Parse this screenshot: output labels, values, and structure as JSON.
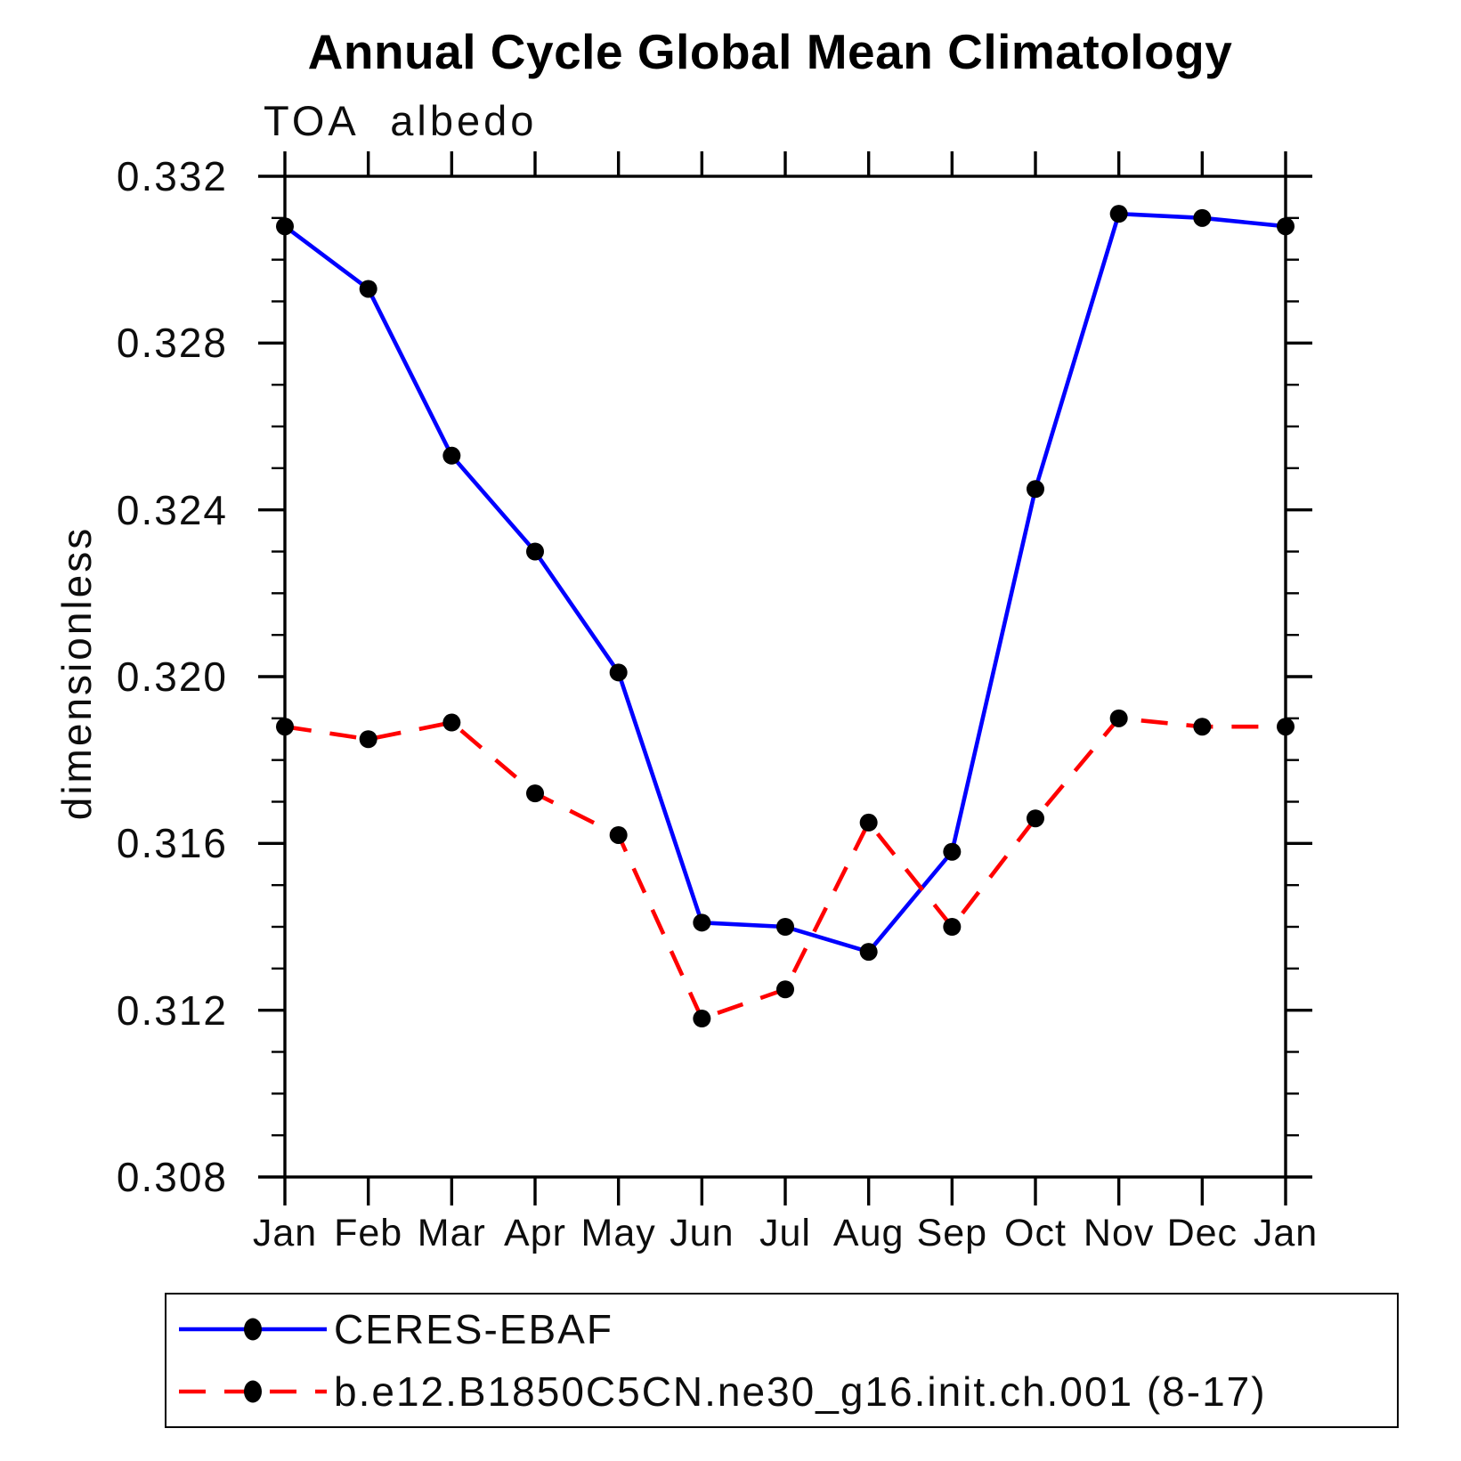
{
  "chart_data": {
    "type": "line",
    "title": "Annual Cycle Global Mean Climatology",
    "subtitle": "TOA albedo",
    "ylabel": "dimensionless",
    "categories": [
      "Jan",
      "Feb",
      "Mar",
      "Apr",
      "May",
      "Jun",
      "Jul",
      "Aug",
      "Sep",
      "Oct",
      "Nov",
      "Dec",
      "Jan"
    ],
    "xtick_labels": [
      "Jan",
      "Feb",
      "Mar",
      "Apr",
      "May",
      "Jun",
      "Jul",
      "Aug",
      "Sep",
      "Oct",
      "Nov",
      "Dec",
      "Jan"
    ],
    "ytick_labels": [
      "0.308",
      "0.312",
      "0.316",
      "0.320",
      "0.324",
      "0.328",
      "0.332"
    ],
    "ylim": [
      0.308,
      0.332
    ],
    "ytick_major_step": 0.004,
    "ytick_minor_step": 0.001,
    "grid": false,
    "legend_position": "bottom-left-box",
    "axis_color": "#000000",
    "marker_color": "#000000",
    "series": [
      {
        "name": "CERES-EBAF",
        "color": "#0000ff",
        "style": "solid",
        "marker": "filled-circle",
        "values": [
          0.3308,
          0.3293,
          0.3253,
          0.323,
          0.3201,
          0.3141,
          0.314,
          0.3134,
          0.3158,
          0.3245,
          0.3311,
          0.331,
          0.3308
        ]
      },
      {
        "name": "b.e12.B1850C5CN.ne30_g16.init.ch.001 (8-17)",
        "color": "#ff0000",
        "style": "dashed",
        "marker": "filled-circle",
        "values": [
          0.3188,
          0.3185,
          0.3189,
          0.3172,
          0.3162,
          0.3118,
          0.3125,
          0.3165,
          0.314,
          0.3166,
          0.319,
          0.3188,
          0.3188
        ]
      }
    ]
  }
}
